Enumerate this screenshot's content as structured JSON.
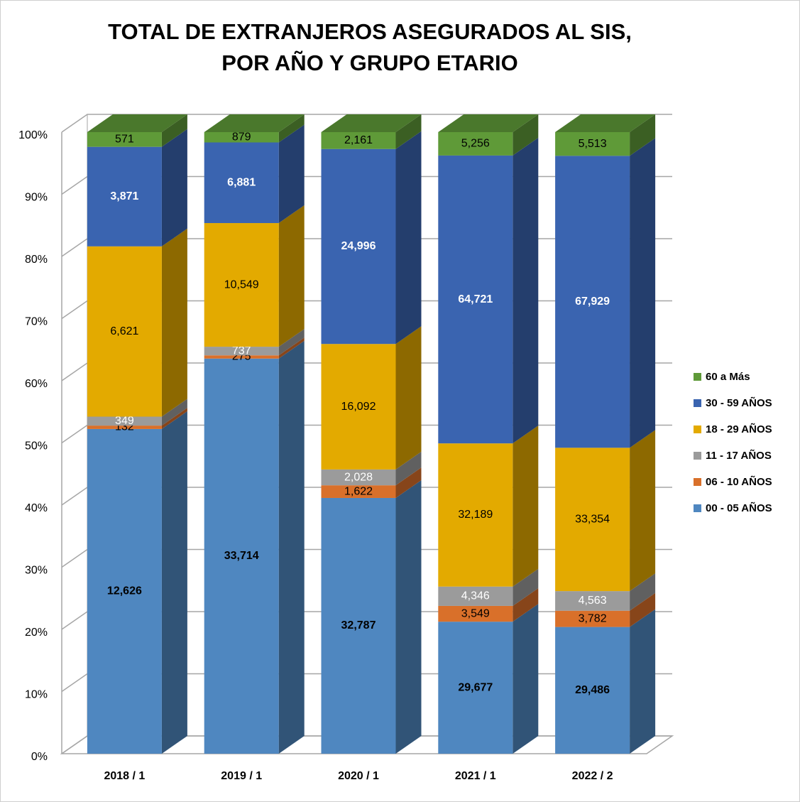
{
  "chart_data": {
    "type": "bar",
    "stacking": "percent",
    "title": "TOTAL DE EXTRANJEROS ASEGURADOS AL SIS, POR AÑO Y GRUPO ETARIO",
    "categories": [
      "2018 / 1",
      "2019 / 1",
      "2020 / 1",
      "2021 / 1",
      "2022 / 2"
    ],
    "series": [
      {
        "name": "00 - 05 AÑOS",
        "color": "#4f87c0",
        "label_color": "#000000",
        "label_bold": true,
        "values": [
          12626,
          33714,
          32787,
          29677,
          29486
        ],
        "value_labels": [
          "12,626",
          "33,714",
          "32,787",
          "29,677",
          "29,486"
        ]
      },
      {
        "name": "06 - 10 AÑOS",
        "color": "#d9702a",
        "label_color": "#000000",
        "label_bold": false,
        "values": [
          132,
          275,
          1622,
          3549,
          3782
        ],
        "value_labels": [
          "132",
          "275",
          "1,622",
          "3,549",
          "3,782"
        ]
      },
      {
        "name": "11 - 17 AÑOS",
        "color": "#9b9b9b",
        "label_color": "#ffffff",
        "label_bold": false,
        "values": [
          349,
          737,
          2028,
          4346,
          4563
        ],
        "value_labels": [
          "349",
          "737",
          "2,028",
          "4,346",
          "4,563"
        ]
      },
      {
        "name": "18 - 29 AÑOS",
        "color": "#e3aa00",
        "label_color": "#000000",
        "label_bold": false,
        "values": [
          6621,
          10549,
          16092,
          32189,
          33354
        ],
        "value_labels": [
          "6,621",
          "10,549",
          "16,092",
          "32,189",
          "33,354"
        ]
      },
      {
        "name": "30 - 59 AÑOS",
        "color": "#3a64b0",
        "label_color": "#ffffff",
        "label_bold": true,
        "values": [
          3871,
          6881,
          24996,
          64721,
          67929
        ],
        "value_labels": [
          "3,871",
          "6,881",
          "24,996",
          "64,721",
          "67,929"
        ]
      },
      {
        "name": "60 a Más",
        "color": "#5f9a38",
        "label_color": "#000000",
        "label_bold": false,
        "values": [
          571,
          879,
          2161,
          5256,
          5513
        ],
        "value_labels": [
          "571",
          "879",
          "2,161",
          "5,256",
          "5,513"
        ]
      }
    ],
    "ylim": [
      0,
      100
    ],
    "yticks": [
      {
        "value": 0,
        "label": "0%"
      },
      {
        "value": 10,
        "label": "10%"
      },
      {
        "value": 20,
        "label": "20%"
      },
      {
        "value": 30,
        "label": "30%"
      },
      {
        "value": 40,
        "label": "40%"
      },
      {
        "value": 50,
        "label": "50%"
      },
      {
        "value": 60,
        "label": "60%"
      },
      {
        "value": 70,
        "label": "70%"
      },
      {
        "value": 80,
        "label": "80%"
      },
      {
        "value": 90,
        "label": "90%"
      },
      {
        "value": 100,
        "label": "100%"
      }
    ],
    "grid": true,
    "legend": "right"
  }
}
